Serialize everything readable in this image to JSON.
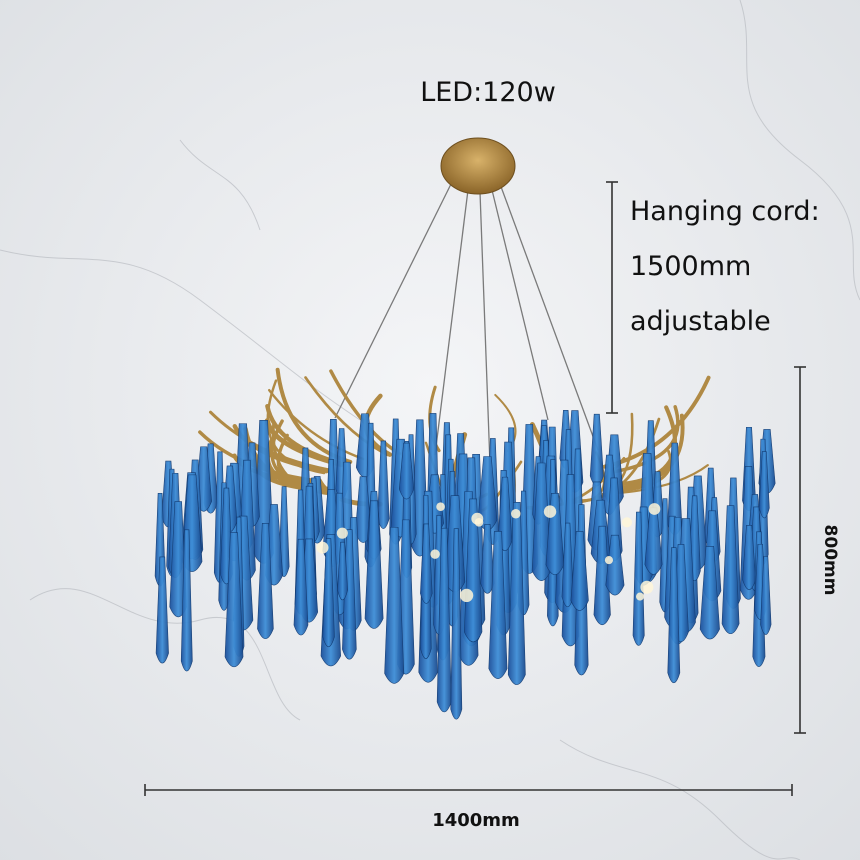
{
  "power_label": "LED:120w",
  "hanging_cord": {
    "lines": [
      "Hanging cord:",
      "1500mm",
      "adjustable"
    ]
  },
  "dimensions": {
    "height": "800mm",
    "width": "1400mm"
  }
}
